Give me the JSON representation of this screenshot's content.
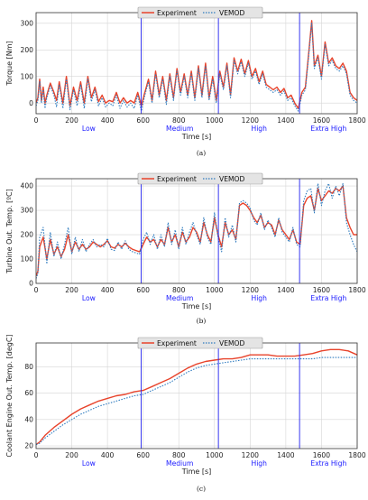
{
  "chart_data": [
    {
      "type": "line",
      "caption": "(a)",
      "xlabel": "Time [s]",
      "ylabel": "Torque [Nm]",
      "xlim": [
        0,
        1800
      ],
      "ylim": [
        -40,
        340
      ],
      "xticks": [
        0,
        200,
        400,
        600,
        800,
        1000,
        1200,
        1400,
        1600,
        1800
      ],
      "yticks": [
        0,
        100,
        200,
        300
      ],
      "grid": true,
      "legend": "top-center",
      "phase_boundaries": [
        589,
        1022,
        1477
      ],
      "phases": [
        {
          "label": "Low",
          "x": 295
        },
        {
          "label": "Medium",
          "x": 805
        },
        {
          "label": "High",
          "x": 1250
        },
        {
          "label": "Extra High",
          "x": 1640
        }
      ],
      "series": [
        {
          "name": "Experiment",
          "style": "solid",
          "x": [
            0,
            10,
            20,
            30,
            40,
            50,
            60,
            80,
            100,
            115,
            130,
            150,
            170,
            190,
            210,
            230,
            250,
            270,
            290,
            310,
            330,
            350,
            370,
            390,
            410,
            430,
            450,
            470,
            490,
            510,
            530,
            550,
            570,
            590,
            610,
            630,
            650,
            670,
            690,
            710,
            730,
            750,
            770,
            790,
            810,
            830,
            850,
            870,
            890,
            910,
            930,
            950,
            970,
            990,
            1010,
            1030,
            1050,
            1070,
            1090,
            1110,
            1130,
            1150,
            1170,
            1190,
            1210,
            1230,
            1250,
            1270,
            1290,
            1310,
            1330,
            1350,
            1370,
            1390,
            1410,
            1430,
            1450,
            1470,
            1490,
            1510,
            1530,
            1545,
            1560,
            1580,
            1600,
            1620,
            1640,
            1660,
            1680,
            1700,
            1720,
            1740,
            1760,
            1780,
            1800
          ],
          "values": [
            0,
            20,
            90,
            10,
            60,
            0,
            30,
            75,
            40,
            10,
            80,
            0,
            100,
            -10,
            60,
            10,
            80,
            0,
            100,
            20,
            60,
            5,
            30,
            0,
            10,
            5,
            40,
            0,
            20,
            0,
            10,
            0,
            40,
            -10,
            40,
            90,
            10,
            120,
            30,
            100,
            10,
            110,
            20,
            130,
            40,
            110,
            30,
            120,
            20,
            140,
            30,
            150,
            20,
            100,
            10,
            120,
            60,
            150,
            30,
            170,
            120,
            165,
            110,
            160,
            100,
            130,
            80,
            120,
            70,
            60,
            50,
            60,
            40,
            55,
            20,
            30,
            0,
            -20,
            40,
            60,
            200,
            310,
            140,
            180,
            100,
            230,
            150,
            170,
            140,
            130,
            150,
            120,
            40,
            20,
            10
          ]
        },
        {
          "name": "VEMOD",
          "style": "dotted",
          "x": [
            0,
            10,
            20,
            30,
            40,
            50,
            60,
            80,
            100,
            115,
            130,
            150,
            170,
            190,
            210,
            230,
            250,
            270,
            290,
            310,
            330,
            350,
            370,
            390,
            410,
            430,
            450,
            470,
            490,
            510,
            530,
            550,
            570,
            590,
            610,
            630,
            650,
            670,
            690,
            710,
            730,
            750,
            770,
            790,
            810,
            830,
            850,
            870,
            890,
            910,
            930,
            950,
            970,
            990,
            1010,
            1030,
            1050,
            1070,
            1090,
            1110,
            1130,
            1150,
            1170,
            1190,
            1210,
            1230,
            1250,
            1270,
            1290,
            1310,
            1330,
            1350,
            1370,
            1390,
            1410,
            1430,
            1450,
            1470,
            1490,
            1510,
            1530,
            1545,
            1560,
            1580,
            1600,
            1620,
            1640,
            1660,
            1680,
            1700,
            1720,
            1740,
            1760,
            1780,
            1800
          ],
          "values": [
            -10,
            10,
            80,
            0,
            50,
            -20,
            20,
            65,
            30,
            -15,
            70,
            -20,
            90,
            -25,
            50,
            -10,
            70,
            -20,
            90,
            5,
            50,
            -10,
            20,
            -15,
            0,
            -10,
            30,
            -20,
            10,
            -15,
            0,
            -20,
            30,
            -30,
            30,
            80,
            0,
            110,
            20,
            90,
            -5,
            100,
            10,
            120,
            30,
            100,
            20,
            110,
            10,
            130,
            20,
            140,
            10,
            90,
            0,
            110,
            50,
            140,
            20,
            160,
            110,
            155,
            100,
            150,
            90,
            120,
            70,
            110,
            60,
            50,
            40,
            50,
            30,
            45,
            10,
            20,
            -10,
            -30,
            30,
            50,
            190,
            300,
            130,
            170,
            90,
            220,
            140,
            160,
            130,
            120,
            140,
            110,
            30,
            10,
            0
          ]
        }
      ]
    },
    {
      "type": "line",
      "caption": "(b)",
      "xlabel": "Time [s]",
      "ylabel": "Turbine Out. Temp. [ºC]",
      "xlim": [
        0,
        1800
      ],
      "ylim": [
        0,
        430
      ],
      "xticks": [
        0,
        200,
        400,
        600,
        800,
        1000,
        1200,
        1400,
        1600,
        1800
      ],
      "yticks": [
        0,
        100,
        200,
        300,
        400
      ],
      "grid": true,
      "legend": "top-center",
      "phase_boundaries": [
        589,
        1022,
        1477
      ],
      "phases": [
        {
          "label": "Low",
          "x": 295
        },
        {
          "label": "Medium",
          "x": 805
        },
        {
          "label": "High",
          "x": 1250
        },
        {
          "label": "Extra High",
          "x": 1640
        }
      ],
      "series": [
        {
          "name": "Experiment",
          "style": "solid",
          "x": [
            0,
            10,
            20,
            40,
            60,
            80,
            100,
            120,
            140,
            160,
            180,
            200,
            220,
            240,
            260,
            280,
            300,
            320,
            340,
            360,
            380,
            400,
            420,
            440,
            460,
            480,
            500,
            520,
            540,
            560,
            580,
            600,
            620,
            640,
            660,
            680,
            700,
            720,
            740,
            760,
            780,
            800,
            820,
            840,
            860,
            880,
            900,
            920,
            940,
            960,
            980,
            1000,
            1020,
            1040,
            1060,
            1080,
            1100,
            1120,
            1140,
            1160,
            1180,
            1200,
            1220,
            1240,
            1260,
            1280,
            1300,
            1320,
            1340,
            1360,
            1380,
            1400,
            1420,
            1440,
            1460,
            1480,
            1500,
            1520,
            1540,
            1560,
            1580,
            1600,
            1620,
            1640,
            1660,
            1680,
            1700,
            1720,
            1740,
            1760,
            1780,
            1800
          ],
          "values": [
            30,
            50,
            150,
            190,
            100,
            180,
            120,
            150,
            110,
            140,
            200,
            130,
            170,
            140,
            160,
            140,
            150,
            170,
            160,
            150,
            160,
            175,
            150,
            145,
            160,
            150,
            165,
            150,
            140,
            135,
            130,
            160,
            190,
            170,
            180,
            150,
            180,
            160,
            230,
            170,
            200,
            150,
            210,
            170,
            190,
            230,
            210,
            170,
            250,
            200,
            170,
            270,
            200,
            150,
            250,
            200,
            220,
            180,
            320,
            330,
            320,
            300,
            270,
            250,
            280,
            230,
            250,
            240,
            200,
            260,
            220,
            200,
            180,
            220,
            170,
            160,
            320,
            350,
            360,
            300,
            390,
            340,
            360,
            380,
            370,
            390,
            380,
            400,
            270,
            230,
            200,
            200
          ]
        },
        {
          "name": "VEMOD",
          "style": "dotted",
          "x": [
            0,
            10,
            20,
            40,
            60,
            80,
            100,
            120,
            140,
            160,
            180,
            200,
            220,
            240,
            260,
            280,
            300,
            320,
            340,
            360,
            380,
            400,
            420,
            440,
            460,
            480,
            500,
            520,
            540,
            560,
            580,
            600,
            620,
            640,
            660,
            680,
            700,
            720,
            740,
            760,
            780,
            800,
            820,
            840,
            860,
            880,
            900,
            920,
            940,
            960,
            980,
            1000,
            1020,
            1040,
            1060,
            1080,
            1100,
            1120,
            1140,
            1160,
            1180,
            1200,
            1220,
            1240,
            1260,
            1280,
            1300,
            1320,
            1340,
            1360,
            1380,
            1400,
            1420,
            1440,
            1460,
            1480,
            1500,
            1520,
            1540,
            1560,
            1580,
            1600,
            1620,
            1640,
            1660,
            1680,
            1700,
            1720,
            1740,
            1760,
            1780,
            1800
          ],
          "values": [
            20,
            40,
            190,
            230,
            80,
            210,
            110,
            170,
            100,
            160,
            230,
            120,
            190,
            130,
            180,
            130,
            160,
            180,
            150,
            160,
            150,
            185,
            140,
            135,
            170,
            140,
            175,
            140,
            130,
            125,
            120,
            180,
            210,
            160,
            200,
            140,
            200,
            150,
            250,
            160,
            220,
            140,
            230,
            160,
            210,
            250,
            200,
            160,
            270,
            190,
            160,
            290,
            190,
            130,
            270,
            190,
            240,
            170,
            330,
            340,
            330,
            310,
            260,
            240,
            290,
            220,
            260,
            230,
            190,
            270,
            210,
            190,
            170,
            230,
            160,
            150,
            340,
            380,
            390,
            290,
            410,
            320,
            380,
            410,
            350,
            400,
            360,
            410,
            250,
            200,
            160,
            130
          ]
        }
      ]
    },
    {
      "type": "line",
      "caption": "(c)",
      "xlabel": "Time [s]",
      "ylabel": "Coolant Engine Out. Temp. [degC]",
      "xlim": [
        0,
        1800
      ],
      "ylim": [
        18,
        98
      ],
      "xticks": [
        0,
        200,
        400,
        600,
        800,
        1000,
        1200,
        1400,
        1600,
        1800
      ],
      "yticks": [
        20,
        40,
        60,
        80
      ],
      "grid": true,
      "legend": "top-center",
      "phase_boundaries": [
        589,
        1022,
        1477
      ],
      "phases": [
        {
          "label": "Low",
          "x": 295
        },
        {
          "label": "Medium",
          "x": 805
        },
        {
          "label": "High",
          "x": 1250
        },
        {
          "label": "Extra High",
          "x": 1640
        }
      ],
      "series": [
        {
          "name": "Experiment",
          "style": "solid",
          "x": [
            0,
            20,
            50,
            100,
            150,
            200,
            250,
            300,
            350,
            400,
            450,
            500,
            550,
            600,
            650,
            700,
            750,
            800,
            850,
            900,
            950,
            1000,
            1050,
            1100,
            1150,
            1200,
            1250,
            1300,
            1350,
            1400,
            1450,
            1500,
            1550,
            1600,
            1650,
            1700,
            1750,
            1800
          ],
          "values": [
            21,
            23,
            28,
            34,
            39,
            44,
            48,
            51,
            54,
            56,
            58,
            59,
            61,
            62,
            65,
            68,
            71,
            75,
            79,
            82,
            84,
            85,
            86,
            86,
            87,
            89,
            89,
            89,
            88,
            88,
            88,
            89,
            90,
            92,
            93,
            93,
            92,
            89
          ]
        },
        {
          "name": "VEMOD",
          "style": "dotted",
          "x": [
            0,
            20,
            50,
            100,
            150,
            200,
            250,
            300,
            350,
            400,
            450,
            500,
            550,
            600,
            650,
            700,
            750,
            800,
            850,
            900,
            950,
            1000,
            1050,
            1100,
            1150,
            1200,
            1250,
            1300,
            1350,
            1400,
            1450,
            1500,
            1550,
            1600,
            1650,
            1700,
            1750,
            1800
          ],
          "values": [
            21,
            22,
            26,
            31,
            36,
            40,
            44,
            47,
            50,
            52,
            54,
            56,
            58,
            59,
            62,
            65,
            68,
            72,
            76,
            79,
            81,
            82,
            83,
            84,
            85,
            86,
            86,
            86,
            86,
            86,
            86,
            86,
            86,
            87,
            87,
            87,
            87,
            87
          ]
        }
      ]
    }
  ]
}
